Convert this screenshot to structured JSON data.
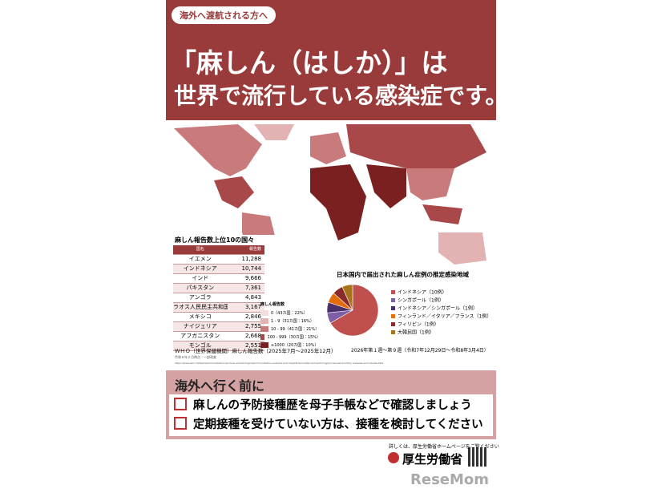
{
  "header": {
    "badge": "海外へ渡航される方へ",
    "title_line1": "「麻しん（はしか）」は",
    "title_line2": "世界で流行している感染症です。"
  },
  "table": {
    "title": "麻しん報告数上位10の国々",
    "columns": [
      "国名",
      "報告数"
    ],
    "rows": [
      [
        "イエメン",
        "11,288"
      ],
      [
        "インドネシア",
        "10,744"
      ],
      [
        "インド",
        "9,666"
      ],
      [
        "パキスタン",
        "7,361"
      ],
      [
        "アンゴラ",
        "4,843"
      ],
      [
        "ラオス人民民主共和国",
        "3,167"
      ],
      [
        "メキシコ",
        "2,846"
      ],
      [
        "ナイジェリア",
        "2,755"
      ],
      [
        "アフガニスタン",
        "2,668"
      ],
      [
        "モンゴル",
        "2,551"
      ]
    ],
    "source": "ＷＨＯ（世界保健機関）麻しん報告数（2025年7月～2025年12月）",
    "note": "令和８年２月時点：一部改変",
    "url": "https://www.who.int/teams/immunization-vaccines-and-biologicals/immunization-analysis-and-insights/surveillance/monitoring/provisional-monthly-measles-and-rubella-data"
  },
  "map_legend": {
    "title": "麻しん報告数",
    "items": [
      "0（43カ国：22%）",
      "1 - 9（31カ国：16%）",
      "10 - 99（41カ国：21%）",
      "100 - 999（30カ国：15%）",
      "≥1000（20カ国：10%）"
    ],
    "colors": [
      "#f3dede",
      "#e3b3b3",
      "#c97a7a",
      "#a84848",
      "#7a2020"
    ]
  },
  "pie": {
    "type": "pie",
    "title": "日本国内で届出された麻しん症例の推定感染地域",
    "categories": [
      "インドネシア（10例）",
      "シンガポール（1例）",
      "インドネシア／シンガポール（1例）",
      "フィンランド／イタリア／フランス（1例）",
      "フィリピン（1例）",
      "大韓民国（1例）"
    ],
    "values": [
      10,
      1,
      1,
      1,
      1,
      1
    ],
    "colors": [
      "#c0504d",
      "#7e5fa6",
      "#4b2f6b",
      "#e46c0a",
      "#8b2a2a",
      "#a8741a"
    ],
    "caption": "2026年第１週～第９週（令和7年12月29日～令和8年3月4日）"
  },
  "checklist": {
    "title": "海外へ行く前に",
    "items": [
      "麻しんの予防接種歴を母子手帳などで確認しましょう",
      "定期接種を受けていない方は、接種を検討してください"
    ]
  },
  "footer": {
    "note": "詳しくは、厚生労働省ホームページをご覧ください",
    "logo": "厚生労働省"
  }
}
